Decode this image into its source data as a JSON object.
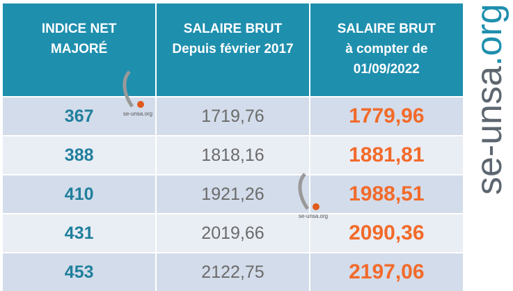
{
  "table": {
    "header": [
      [
        "INDICE NET",
        "MAJORÉ"
      ],
      [
        "SALAIRE BRUT",
        "Depuis février 2017"
      ],
      [
        "SALAIRE BRUT",
        "à compter de",
        "01/09/2022"
      ]
    ],
    "rows": [
      [
        "367",
        "1719,76",
        "1779,96"
      ],
      [
        "388",
        "1818,16",
        "1881,81"
      ],
      [
        "410",
        "1921,26",
        "1988,51"
      ],
      [
        "431",
        "2019,66",
        "2090,36"
      ],
      [
        "453",
        "2122,75",
        "2197,06"
      ]
    ]
  },
  "watermarks": [
    "se-unsa.org",
    "se-unsa.org"
  ],
  "brand": {
    "name": "se-unsa",
    "suffix": ".org"
  }
}
